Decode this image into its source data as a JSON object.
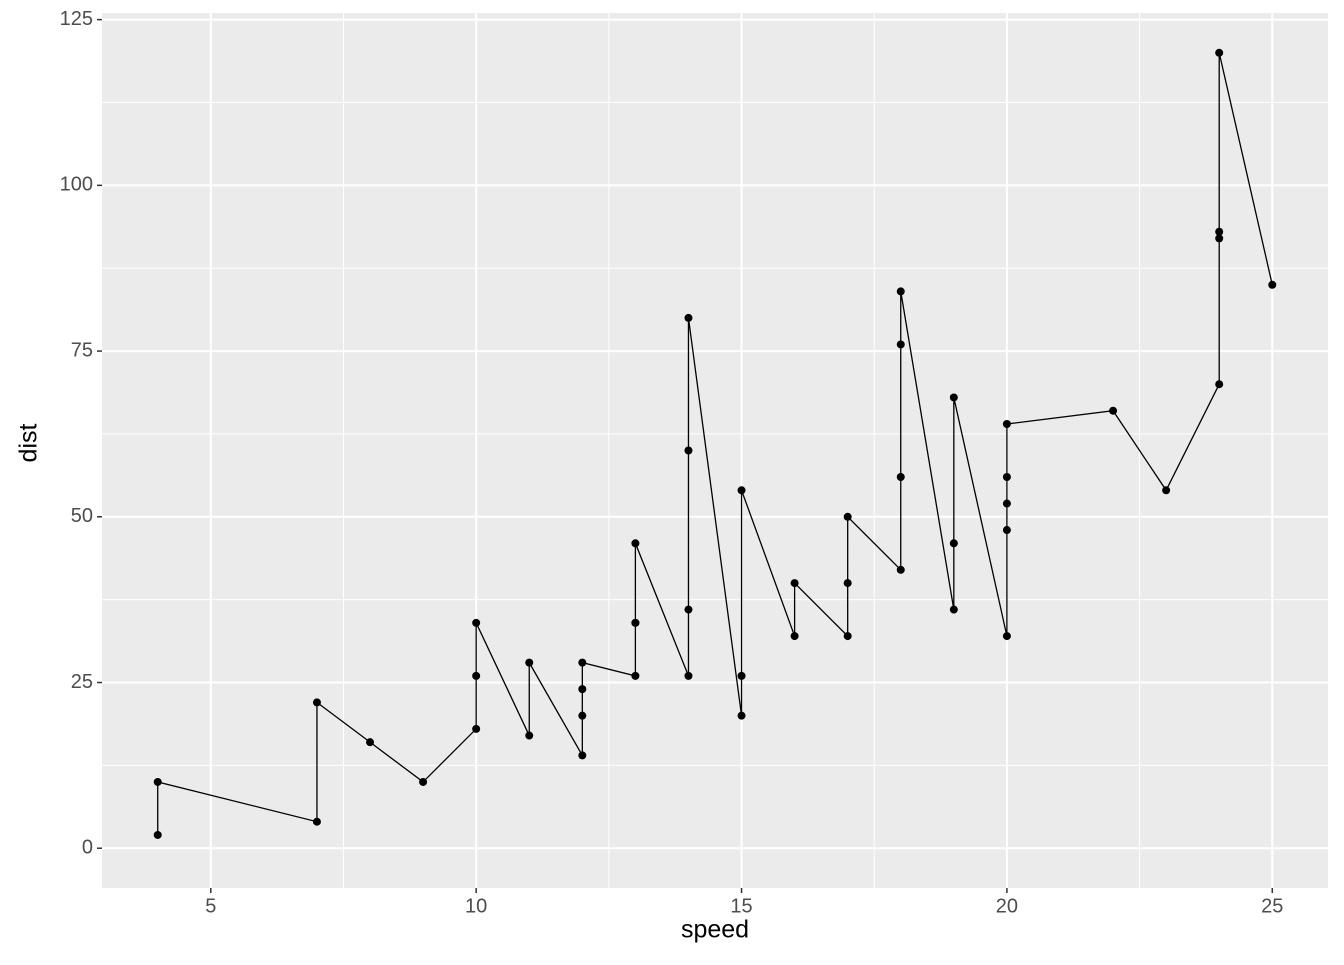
{
  "chart_data": {
    "type": "line",
    "x_label": "speed",
    "y_label": "dist",
    "x": [
      4,
      4,
      7,
      7,
      8,
      9,
      10,
      10,
      10,
      11,
      11,
      12,
      12,
      12,
      12,
      13,
      13,
      13,
      13,
      14,
      14,
      14,
      14,
      15,
      15,
      15,
      16,
      16,
      17,
      17,
      17,
      18,
      18,
      18,
      18,
      19,
      19,
      19,
      20,
      20,
      20,
      20,
      20,
      22,
      23,
      24,
      24,
      24,
      24,
      25
    ],
    "series": [
      {
        "color": "#000000",
        "values": [
          2,
          10,
          4,
          22,
          16,
          10,
          18,
          26,
          34,
          17,
          28,
          14,
          20,
          24,
          28,
          26,
          34,
          34,
          46,
          26,
          36,
          60,
          80,
          20,
          26,
          54,
          32,
          40,
          32,
          40,
          50,
          42,
          56,
          76,
          84,
          36,
          46,
          68,
          32,
          48,
          52,
          56,
          64,
          66,
          54,
          70,
          92,
          93,
          120,
          85
        ]
      }
    ],
    "markers": true,
    "xlim": [
      2.95,
      26.05
    ],
    "ylim": [
      -6,
      126
    ],
    "xticks": [
      5,
      10,
      15,
      20,
      25
    ],
    "yticks": [
      0,
      25,
      50,
      75,
      100,
      125
    ],
    "xminor": [
      7.5,
      12.5,
      17.5,
      22.5
    ],
    "yminor": [
      12.5,
      37.5,
      62.5,
      87.5,
      112.5
    ],
    "grid": true,
    "panel_color": "#ebebeb"
  }
}
